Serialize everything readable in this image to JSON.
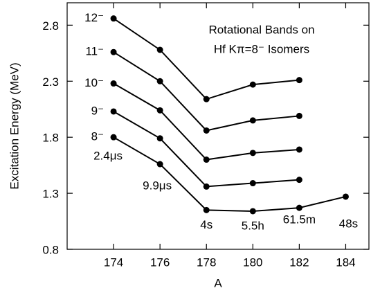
{
  "chart_data": {
    "type": "line",
    "title": [
      "Rotational Bands on",
      "Hf Kπ=8⁻ Isomers"
    ],
    "x_label": "A",
    "y_label": "Excitation Energy (MeV)",
    "xlim": [
      172,
      185
    ],
    "xticks": [
      174,
      176,
      178,
      180,
      182,
      184
    ],
    "ylim": [
      0.8,
      3.0
    ],
    "yticks": [
      0.8,
      1.3,
      1.8,
      2.3,
      2.8
    ],
    "color": "#000000",
    "series": [
      {
        "name": "8⁻",
        "x": [
          174,
          176,
          178,
          180,
          182,
          184
        ],
        "values": [
          1.8,
          1.56,
          1.15,
          1.14,
          1.17,
          1.27
        ],
        "point_labels": [
          "2.4μs",
          "9.9μs",
          "4s",
          "5.5h",
          "61.5m",
          "48s"
        ]
      },
      {
        "name": "9⁻",
        "x": [
          174,
          176,
          178,
          180,
          182
        ],
        "values": [
          2.03,
          1.79,
          1.36,
          1.39,
          1.42
        ]
      },
      {
        "name": "10⁻",
        "x": [
          174,
          176,
          178,
          180,
          182
        ],
        "values": [
          2.28,
          2.04,
          1.6,
          1.66,
          1.69
        ]
      },
      {
        "name": "11⁻",
        "x": [
          174,
          176,
          178,
          180,
          182
        ],
        "values": [
          2.56,
          2.3,
          1.86,
          1.95,
          1.99
        ]
      },
      {
        "name": "12⁻",
        "x": [
          174,
          176,
          178,
          180,
          182
        ],
        "values": [
          2.86,
          2.58,
          2.14,
          2.27,
          2.31
        ]
      }
    ]
  }
}
